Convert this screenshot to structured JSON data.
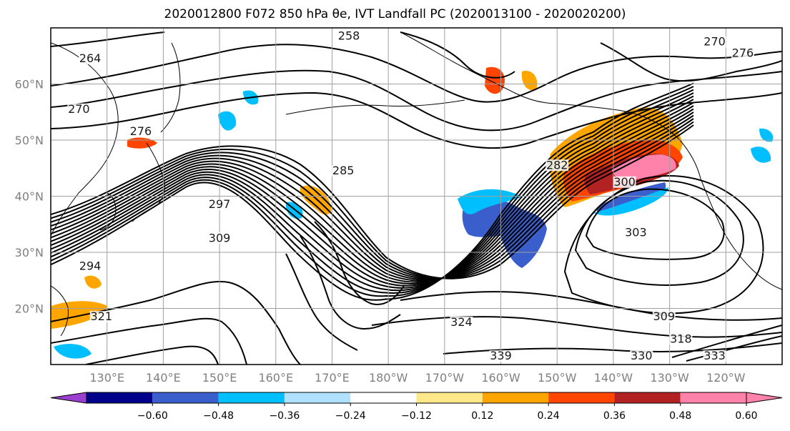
{
  "title": "2020012800 F072 850 hPa θe, IVT Landfall PC (2020013100 - 2020020200)",
  "map": {
    "lat_labels": [
      "60°N",
      "50°N",
      "40°N",
      "30°N",
      "20°N"
    ],
    "lat_values": [
      60,
      50,
      40,
      30,
      20
    ],
    "lon_labels": [
      "130°E",
      "140°E",
      "150°E",
      "160°E",
      "170°E",
      "180°W",
      "170°W",
      "160°W",
      "150°W",
      "140°W",
      "130°W",
      "120°W"
    ],
    "lon_values": [
      130,
      140,
      150,
      160,
      170,
      180,
      190,
      200,
      210,
      220,
      230,
      240
    ],
    "lat_range": [
      10,
      70
    ],
    "lon_range": [
      120,
      250
    ],
    "contour_labels": [
      {
        "text": "264",
        "lon": 127,
        "lat": 64
      },
      {
        "text": "258",
        "lon": 173,
        "lat": 68
      },
      {
        "text": "270",
        "lon": 125,
        "lat": 55
      },
      {
        "text": "276",
        "lon": 136,
        "lat": 51
      },
      {
        "text": "285",
        "lon": 172,
        "lat": 44
      },
      {
        "text": "297",
        "lon": 150,
        "lat": 38
      },
      {
        "text": "309",
        "lon": 150,
        "lat": 32
      },
      {
        "text": "294",
        "lon": 127,
        "lat": 27
      },
      {
        "text": "321",
        "lon": 129,
        "lat": 18
      },
      {
        "text": "324",
        "lon": 193,
        "lat": 17
      },
      {
        "text": "282",
        "lon": 210,
        "lat": 45
      },
      {
        "text": "300",
        "lon": 222,
        "lat": 42
      },
      {
        "text": "303",
        "lon": 224,
        "lat": 33
      },
      {
        "text": "309",
        "lon": 229,
        "lat": 18
      },
      {
        "text": "318",
        "lon": 232,
        "lat": 14
      },
      {
        "text": "330",
        "lon": 225,
        "lat": 11
      },
      {
        "text": "333",
        "lon": 238,
        "lat": 11
      },
      {
        "text": "270",
        "lon": 238,
        "lat": 67
      },
      {
        "text": "276",
        "lon": 243,
        "lat": 65
      },
      {
        "text": "339",
        "lon": 200,
        "lat": 11
      }
    ]
  },
  "colorbar": {
    "tick_labels": [
      "−0.60",
      "−0.48",
      "−0.36",
      "−0.24",
      "−0.12",
      "0.12",
      "0.24",
      "0.36",
      "0.48",
      "0.60"
    ],
    "colors": [
      "#9a3fd0",
      "#00008b",
      "#3a5fcd",
      "#00bfff",
      "#b0e2ff",
      "#ffffff",
      "#ffe88a",
      "#ffa500",
      "#ff4500",
      "#b22222",
      "#ff82ab",
      "#ff82ab"
    ]
  }
}
